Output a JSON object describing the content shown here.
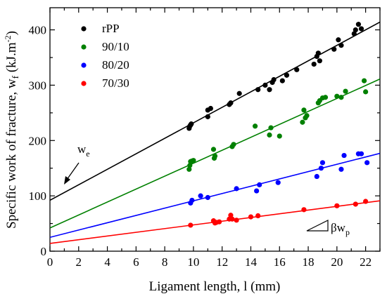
{
  "chart_data": {
    "type": "scatter",
    "xlabel": "Ligament length, l (mm)",
    "ylabel_parts": [
      "Specific work of fracture, w",
      "f",
      " (kJ.m",
      "-2",
      ")"
    ],
    "xlim": [
      0,
      23
    ],
    "ylim": [
      0,
      440
    ],
    "xticks": [
      0,
      2,
      4,
      6,
      8,
      10,
      12,
      14,
      16,
      18,
      20,
      22
    ],
    "yticks": [
      0,
      100,
      200,
      300,
      400
    ],
    "grid": false,
    "legend_position": "top-left",
    "annotations": {
      "we": {
        "main": "w",
        "sub": "e"
      },
      "slope": {
        "main": "βw",
        "sub": "p"
      }
    },
    "series": [
      {
        "name": "rPP",
        "color": "#000000",
        "fit": {
          "intercept": 92,
          "slope": 14
        },
        "points": [
          [
            9.7,
            222
          ],
          [
            9.75,
            226
          ],
          [
            9.8,
            228
          ],
          [
            9.85,
            230
          ],
          [
            11.0,
            255
          ],
          [
            11.2,
            258
          ],
          [
            11.0,
            243
          ],
          [
            12.5,
            265
          ],
          [
            12.6,
            268
          ],
          [
            13.2,
            285
          ],
          [
            14.5,
            292
          ],
          [
            15.0,
            300
          ],
          [
            15.3,
            292
          ],
          [
            15.5,
            305
          ],
          [
            15.6,
            310
          ],
          [
            16.2,
            308
          ],
          [
            16.5,
            318
          ],
          [
            17.2,
            328
          ],
          [
            18.4,
            338
          ],
          [
            18.6,
            352
          ],
          [
            18.7,
            358
          ],
          [
            18.8,
            344
          ],
          [
            19.8,
            365
          ],
          [
            20.1,
            382
          ],
          [
            20.3,
            372
          ],
          [
            21.2,
            393
          ],
          [
            21.3,
            400
          ],
          [
            21.5,
            410
          ],
          [
            21.7,
            402
          ]
        ]
      },
      {
        "name": "90/10",
        "color": "#008000",
        "fit": {
          "intercept": 42,
          "slope": 11.7
        },
        "points": [
          [
            9.7,
            148
          ],
          [
            9.75,
            155
          ],
          [
            9.8,
            162
          ],
          [
            9.9,
            163
          ],
          [
            10.0,
            164
          ],
          [
            11.4,
            184
          ],
          [
            11.45,
            168
          ],
          [
            11.5,
            172
          ],
          [
            12.7,
            189
          ],
          [
            12.8,
            193
          ],
          [
            14.3,
            226
          ],
          [
            15.3,
            210
          ],
          [
            15.4,
            223
          ],
          [
            16.0,
            208
          ],
          [
            17.6,
            233
          ],
          [
            17.7,
            255
          ],
          [
            17.8,
            241
          ],
          [
            17.9,
            245
          ],
          [
            18.7,
            268
          ],
          [
            18.8,
            272
          ],
          [
            19.0,
            277
          ],
          [
            19.2,
            278
          ],
          [
            20.0,
            280
          ],
          [
            20.3,
            278
          ],
          [
            20.6,
            289
          ],
          [
            21.9,
            308
          ],
          [
            22.0,
            288
          ]
        ]
      },
      {
        "name": "80/20",
        "color": "#0000ff",
        "fit": {
          "intercept": 25,
          "slope": 6.6
        },
        "points": [
          [
            9.8,
            87
          ],
          [
            9.9,
            92
          ],
          [
            10.5,
            100
          ],
          [
            11.0,
            97
          ],
          [
            13.0,
            113
          ],
          [
            14.4,
            109
          ],
          [
            14.6,
            120
          ],
          [
            15.9,
            124
          ],
          [
            18.6,
            135
          ],
          [
            18.9,
            150
          ],
          [
            19.0,
            160
          ],
          [
            20.3,
            148
          ],
          [
            20.5,
            173
          ],
          [
            21.5,
            176
          ],
          [
            21.7,
            176
          ],
          [
            22.1,
            160
          ]
        ]
      },
      {
        "name": "70/30",
        "color": "#ff0000",
        "fit": {
          "intercept": 14,
          "slope": 3.35
        },
        "points": [
          [
            9.8,
            47
          ],
          [
            11.4,
            55
          ],
          [
            11.5,
            51
          ],
          [
            11.6,
            52
          ],
          [
            11.8,
            53
          ],
          [
            12.5,
            58
          ],
          [
            12.6,
            65
          ],
          [
            12.7,
            58
          ],
          [
            13.0,
            56
          ],
          [
            14.0,
            62
          ],
          [
            14.5,
            64
          ],
          [
            17.7,
            75
          ],
          [
            20.0,
            82
          ],
          [
            21.3,
            85
          ],
          [
            22.0,
            90
          ]
        ]
      }
    ]
  }
}
